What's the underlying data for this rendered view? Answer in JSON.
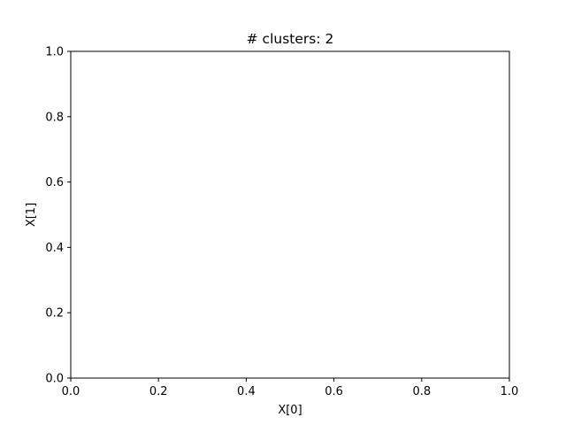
{
  "chart_data": {
    "type": "scatter",
    "title": "# clusters: 2",
    "xlabel": "X[0]",
    "ylabel": "X[1]",
    "xlim": [
      0.0,
      1.0
    ],
    "ylim": [
      0.0,
      1.0
    ],
    "xticks": [
      "0.0",
      "0.2",
      "0.4",
      "0.6",
      "0.8",
      "1.0"
    ],
    "yticks": [
      "0.0",
      "0.2",
      "0.4",
      "0.6",
      "0.8",
      "1.0"
    ],
    "grid": false,
    "series": []
  }
}
